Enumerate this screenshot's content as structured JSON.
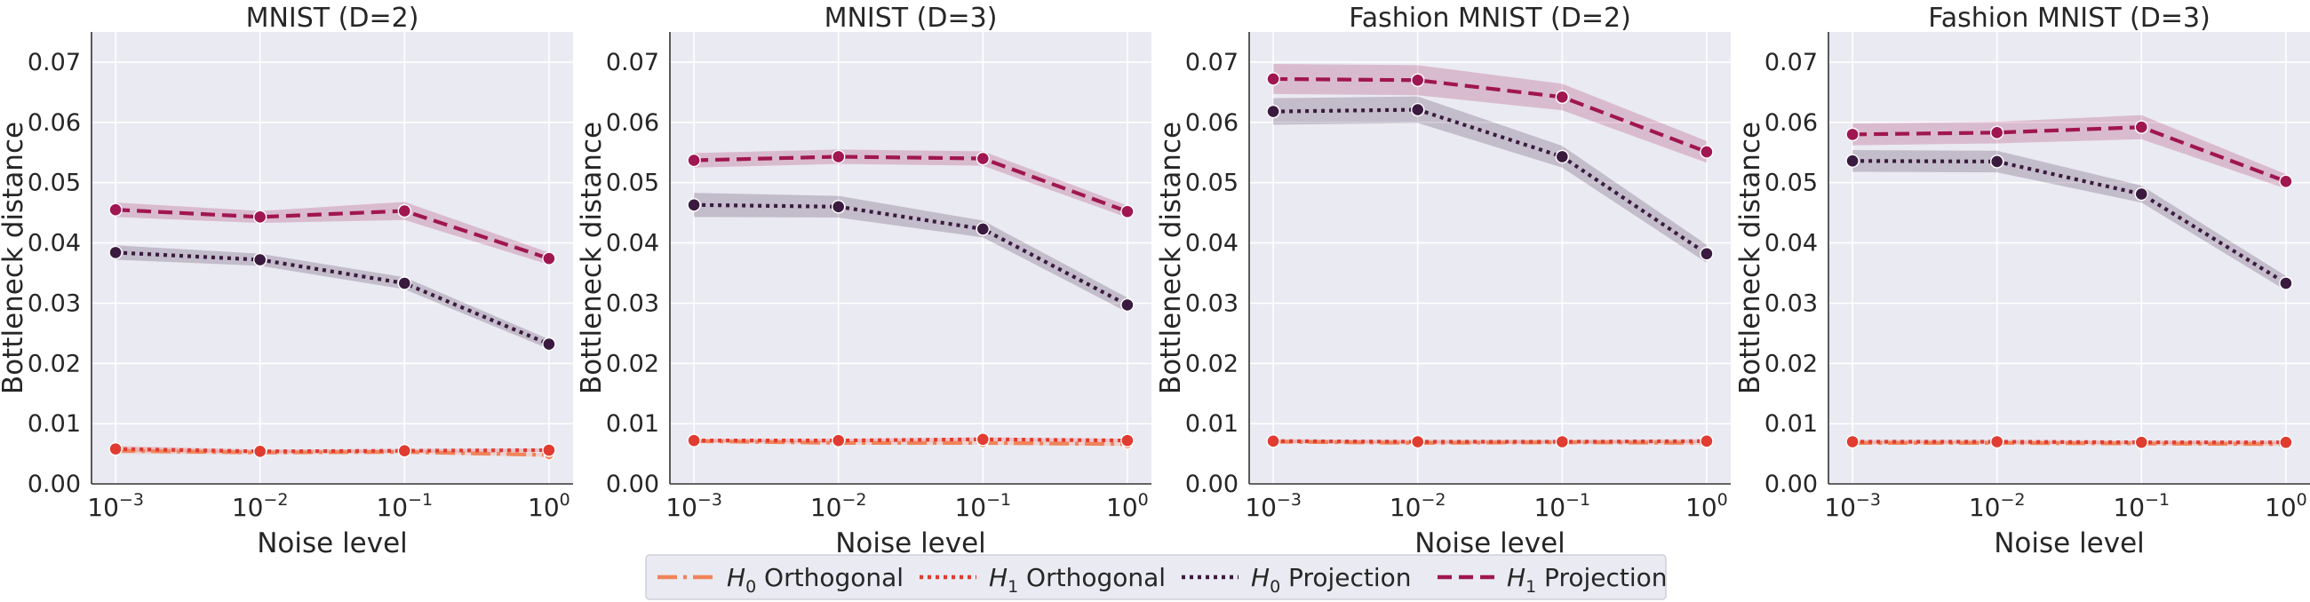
{
  "chart_data": [
    {
      "type": "line",
      "title": "MNIST (D=2)",
      "xlabel": "Noise level",
      "ylabel": "Bottleneck distance",
      "xscale": "log",
      "x": [
        0.001,
        0.01,
        0.1,
        1
      ],
      "x_tick_labels": [
        {
          "base": "10",
          "exp": "−3"
        },
        {
          "base": "10",
          "exp": "−2"
        },
        {
          "base": "10",
          "exp": "−1"
        },
        {
          "base": "10",
          "exp": "0"
        }
      ],
      "ylim": [
        0,
        0.075
      ],
      "y_ticks": [
        "0.00",
        "0.01",
        "0.02",
        "0.03",
        "0.04",
        "0.05",
        "0.06",
        "0.07"
      ],
      "grid": true,
      "series": [
        {
          "name": "H0 Orthogonal",
          "values": [
            0.0055,
            0.0052,
            0.0053,
            0.0048
          ],
          "band": [
            0.0005,
            0.0003,
            0.0003,
            0.0003
          ]
        },
        {
          "name": "H1 Orthogonal",
          "values": [
            0.0058,
            0.0054,
            0.0055,
            0.0056
          ],
          "band": [
            0.0005,
            0.0003,
            0.0003,
            0.0003
          ]
        },
        {
          "name": "H0 Projection",
          "values": [
            0.0384,
            0.0372,
            0.0333,
            0.0232
          ],
          "band": [
            0.0012,
            0.001,
            0.001,
            0.0008
          ]
        },
        {
          "name": "H1 Projection",
          "values": [
            0.0455,
            0.0443,
            0.0453,
            0.0374
          ],
          "band": [
            0.0012,
            0.001,
            0.0015,
            0.001
          ]
        }
      ]
    },
    {
      "type": "line",
      "title": "MNIST (D=3)",
      "xlabel": "Noise level",
      "ylabel": "Bottleneck distance",
      "xscale": "log",
      "x": [
        0.001,
        0.01,
        0.1,
        1
      ],
      "x_tick_labels": [
        {
          "base": "10",
          "exp": "−3"
        },
        {
          "base": "10",
          "exp": "−2"
        },
        {
          "base": "10",
          "exp": "−1"
        },
        {
          "base": "10",
          "exp": "0"
        }
      ],
      "ylim": [
        0,
        0.075
      ],
      "y_ticks": [
        "0.00",
        "0.01",
        "0.02",
        "0.03",
        "0.04",
        "0.05",
        "0.06",
        "0.07"
      ],
      "grid": true,
      "series": [
        {
          "name": "H0 Orthogonal",
          "values": [
            0.0071,
            0.0068,
            0.0068,
            0.0066
          ],
          "band": [
            0.0003,
            0.0003,
            0.0003,
            0.0003
          ]
        },
        {
          "name": "H1 Orthogonal",
          "values": [
            0.0072,
            0.0072,
            0.0074,
            0.0072
          ],
          "band": [
            0.0003,
            0.0003,
            0.0003,
            0.0003
          ]
        },
        {
          "name": "H0 Projection",
          "values": [
            0.0463,
            0.046,
            0.0423,
            0.0297
          ],
          "band": [
            0.002,
            0.0018,
            0.0014,
            0.0012
          ]
        },
        {
          "name": "H1 Projection",
          "values": [
            0.0537,
            0.0543,
            0.054,
            0.0452
          ],
          "band": [
            0.0012,
            0.0012,
            0.0012,
            0.001
          ]
        }
      ]
    },
    {
      "type": "line",
      "title": "Fashion MNIST (D=2)",
      "xlabel": "Noise level",
      "ylabel": "Bottleneck distance",
      "xscale": "log",
      "x": [
        0.001,
        0.01,
        0.1,
        1
      ],
      "x_tick_labels": [
        {
          "base": "10",
          "exp": "−3"
        },
        {
          "base": "10",
          "exp": "−2"
        },
        {
          "base": "10",
          "exp": "−1"
        },
        {
          "base": "10",
          "exp": "0"
        }
      ],
      "ylim": [
        0,
        0.075
      ],
      "y_ticks": [
        "0.00",
        "0.01",
        "0.02",
        "0.03",
        "0.04",
        "0.05",
        "0.06",
        "0.07"
      ],
      "grid": true,
      "series": [
        {
          "name": "H0 Orthogonal",
          "values": [
            0.007,
            0.0068,
            0.0069,
            0.0068
          ],
          "band": [
            0.0003,
            0.0003,
            0.0003,
            0.0003
          ]
        },
        {
          "name": "H1 Orthogonal",
          "values": [
            0.0071,
            0.007,
            0.007,
            0.0071
          ],
          "band": [
            0.0003,
            0.0003,
            0.0003,
            0.0003
          ]
        },
        {
          "name": "H0 Projection",
          "values": [
            0.0618,
            0.0621,
            0.0543,
            0.0382
          ],
          "band": [
            0.0022,
            0.0022,
            0.0018,
            0.0015
          ]
        },
        {
          "name": "H1 Projection",
          "values": [
            0.0672,
            0.067,
            0.0642,
            0.0551
          ],
          "band": [
            0.0025,
            0.0025,
            0.0022,
            0.0018
          ]
        }
      ]
    },
    {
      "type": "line",
      "title": "Fashion MNIST (D=3)",
      "xlabel": "Noise level",
      "ylabel": "Bottleneck distance",
      "xscale": "log",
      "x": [
        0.001,
        0.01,
        0.1,
        1
      ],
      "x_tick_labels": [
        {
          "base": "10",
          "exp": "−3"
        },
        {
          "base": "10",
          "exp": "−2"
        },
        {
          "base": "10",
          "exp": "−1"
        },
        {
          "base": "10",
          "exp": "0"
        }
      ],
      "ylim": [
        0,
        0.075
      ],
      "y_ticks": [
        "0.00",
        "0.01",
        "0.02",
        "0.03",
        "0.04",
        "0.05",
        "0.06",
        "0.07"
      ],
      "grid": true,
      "series": [
        {
          "name": "H0 Orthogonal",
          "values": [
            0.0068,
            0.0068,
            0.0067,
            0.0066
          ],
          "band": [
            0.0003,
            0.0003,
            0.0003,
            0.0003
          ]
        },
        {
          "name": "H1 Orthogonal",
          "values": [
            0.007,
            0.007,
            0.0069,
            0.0069
          ],
          "band": [
            0.0003,
            0.0003,
            0.0003,
            0.0003
          ]
        },
        {
          "name": "H0 Projection",
          "values": [
            0.0536,
            0.0535,
            0.0481,
            0.0333
          ],
          "band": [
            0.0018,
            0.0018,
            0.0014,
            0.0012
          ]
        },
        {
          "name": "H1 Projection",
          "values": [
            0.058,
            0.0583,
            0.0592,
            0.0502
          ],
          "band": [
            0.0018,
            0.0018,
            0.002,
            0.0012
          ]
        }
      ]
    }
  ],
  "legend": {
    "placement": "bottom-center",
    "items": [
      {
        "base": "H",
        "sub": "0",
        "label": " Orthogonal",
        "color": "#f0845a",
        "dash": "dashdot"
      },
      {
        "base": "H",
        "sub": "1",
        "label": " Orthogonal",
        "color": "#e03c31",
        "dash": "dotted"
      },
      {
        "base": "H",
        "sub": "0",
        "label": " Projection",
        "color": "#3a1b3f",
        "dash": "dotted"
      },
      {
        "base": "H",
        "sub": "1",
        "label": " Projection",
        "color": "#a01650",
        "dash": "dashed"
      }
    ]
  },
  "colors": {
    "h0_orthogonal": "#f0845a",
    "h1_orthogonal": "#e03c31",
    "h0_projection": "#3a1b3f",
    "h1_projection": "#a01650",
    "plot_background": "#eaeaf2",
    "grid": "#ffffff"
  }
}
